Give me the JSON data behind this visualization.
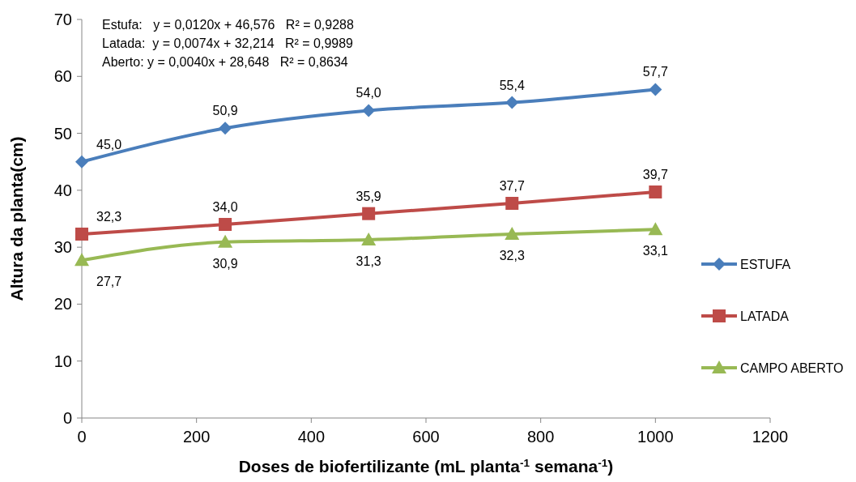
{
  "chart_data": {
    "type": "line",
    "xlabel": "Doses de biofertilizante (mL planta$^{-1}$ semana$^{-1}$)",
    "ylabel": "Altura da planta(cm)",
    "x": [
      0,
      250,
      500,
      750,
      1000
    ],
    "series": [
      {
        "name": "ESTUFA",
        "color": "#4a7ebb",
        "marker": "diamond",
        "values": [
          45.0,
          50.9,
          54.0,
          55.4,
          57.7
        ],
        "value_labels": [
          "45,0",
          "50,9",
          "54,0",
          "55,4",
          "57,7"
        ]
      },
      {
        "name": "LATADA",
        "color": "#be4b48",
        "marker": "square",
        "values": [
          32.3,
          34.0,
          35.9,
          37.7,
          39.7
        ],
        "value_labels": [
          "32,3",
          "34,0",
          "35,9",
          "37,7",
          "39,7"
        ]
      },
      {
        "name": "CAMPO ABERTO",
        "color": "#98b954",
        "marker": "triangle",
        "values": [
          27.7,
          30.9,
          31.3,
          32.3,
          33.1
        ],
        "value_labels": [
          "27,7",
          "30,9",
          "31,3",
          "32,3",
          "33,1"
        ]
      }
    ],
    "xlim": [
      0,
      1200
    ],
    "xticks": [
      0,
      200,
      400,
      600,
      800,
      1000,
      1200
    ],
    "ylim": [
      0,
      70
    ],
    "yticks": [
      0,
      10,
      20,
      30,
      40,
      50,
      60,
      70
    ],
    "grid": false,
    "legend": "right",
    "line_style": "solid",
    "annotations": [
      "Estufa:   y = 0,0120x + 46,576   R² = 0,9288",
      "Latada:  y = 0,0074x + 32,214   R² = 0,9989",
      "Aberto: y = 0,0040x + 28,648   R² = 0,8634"
    ]
  }
}
